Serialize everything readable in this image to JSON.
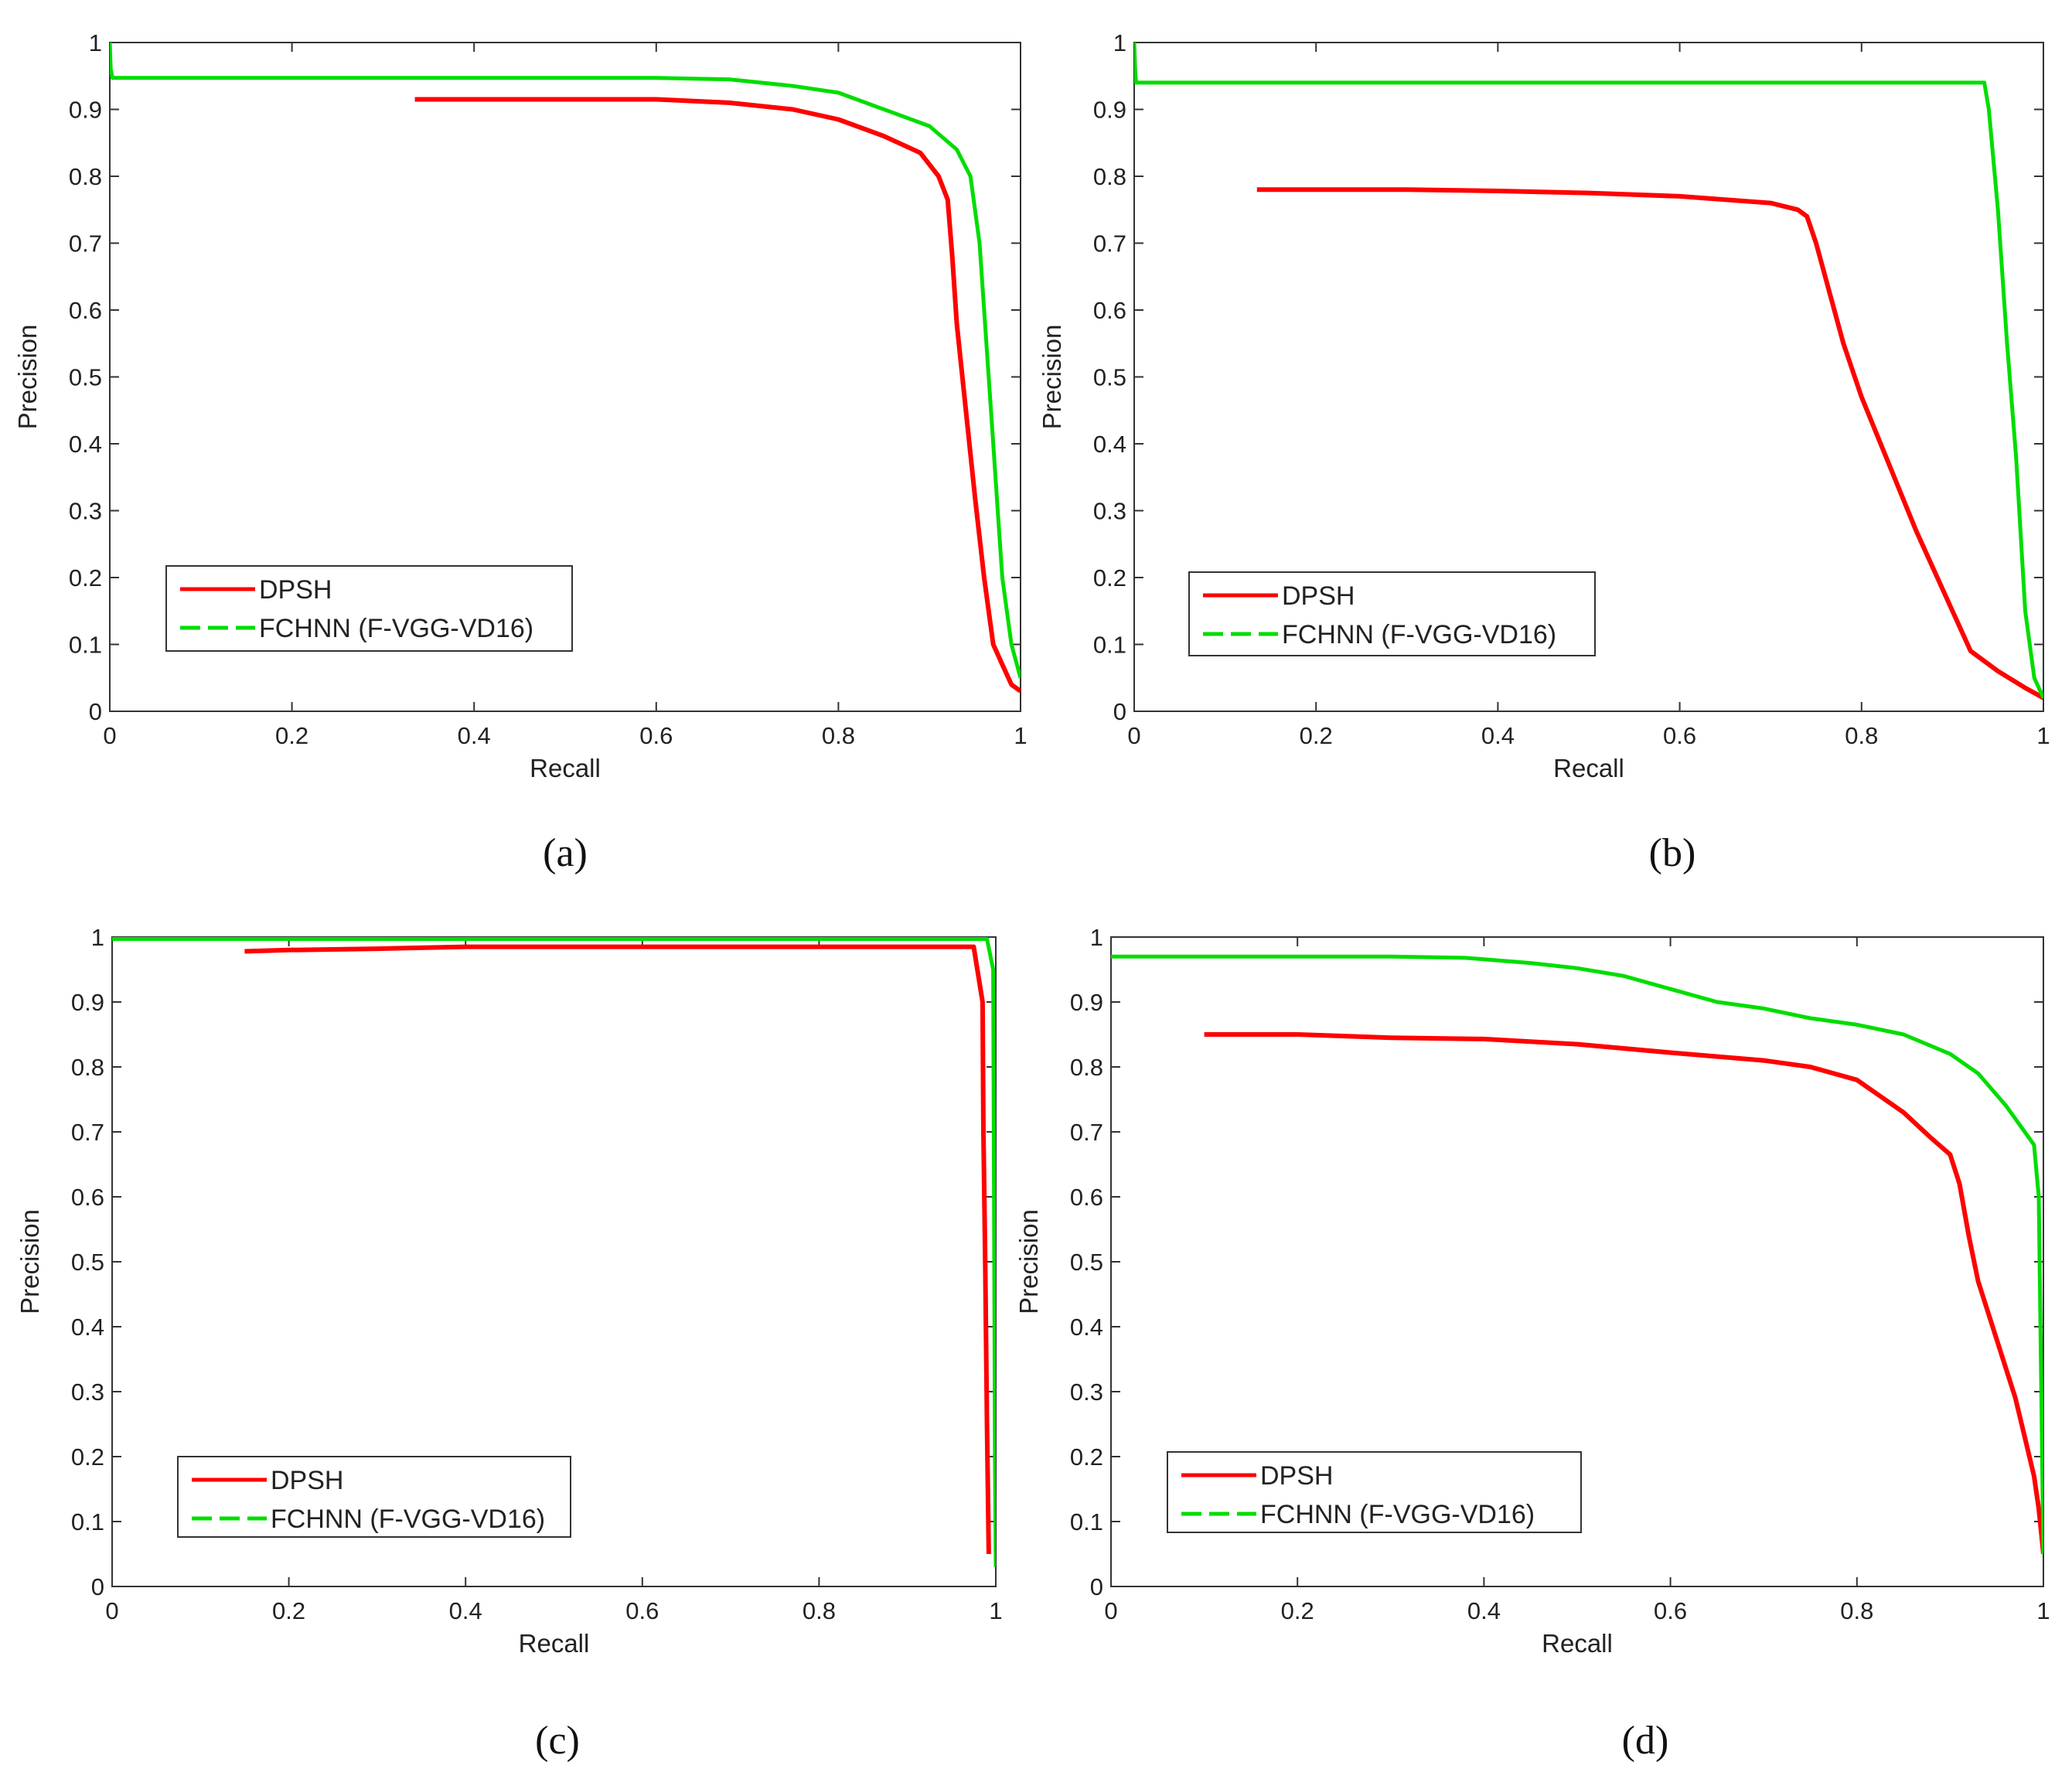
{
  "chart_data": [
    {
      "type": "line",
      "panel": "(a)",
      "xlabel": "Recall",
      "ylabel": "Precision",
      "xlim": [
        0,
        1
      ],
      "ylim": [
        0,
        1
      ],
      "xticks": [
        "0",
        "0.2",
        "0.4",
        "0.6",
        "0.8",
        "1"
      ],
      "yticks": [
        "0",
        "0.1",
        "0.2",
        "0.3",
        "0.4",
        "0.5",
        "0.6",
        "0.7",
        "0.8",
        "0.9",
        "1"
      ],
      "legend_position": "lower-left",
      "series": [
        {
          "name": "DPSH",
          "color": "#ff0000",
          "x": [
            0.335,
            0.4,
            0.5,
            0.6,
            0.68,
            0.75,
            0.8,
            0.85,
            0.89,
            0.91,
            0.92,
            0.925,
            0.93,
            0.94,
            0.95,
            0.96,
            0.97,
            0.98,
            0.99,
            1.0
          ],
          "y": [
            0.915,
            0.915,
            0.915,
            0.915,
            0.91,
            0.9,
            0.885,
            0.86,
            0.835,
            0.8,
            0.765,
            0.68,
            0.58,
            0.45,
            0.32,
            0.2,
            0.1,
            0.07,
            0.04,
            0.03
          ]
        },
        {
          "name": "FCHNN (F-VGG-VD16)",
          "color": "#00dd00",
          "x": [
            0.0,
            0.001,
            0.003,
            0.1,
            0.3,
            0.5,
            0.6,
            0.68,
            0.75,
            0.8,
            0.85,
            0.9,
            0.93,
            0.945,
            0.955,
            0.96,
            0.965,
            0.97,
            0.975,
            0.98,
            0.99,
            1.0
          ],
          "y": [
            1.0,
            0.96,
            0.947,
            0.947,
            0.947,
            0.947,
            0.947,
            0.945,
            0.935,
            0.925,
            0.9,
            0.875,
            0.84,
            0.8,
            0.7,
            0.6,
            0.5,
            0.4,
            0.3,
            0.2,
            0.1,
            0.05
          ]
        }
      ]
    },
    {
      "type": "line",
      "panel": "(b)",
      "xlabel": "Recall",
      "ylabel": "Precision",
      "xlim": [
        0,
        1
      ],
      "ylim": [
        0,
        1
      ],
      "xticks": [
        "0",
        "0.2",
        "0.4",
        "0.6",
        "0.8",
        "1"
      ],
      "yticks": [
        "0",
        "0.1",
        "0.2",
        "0.3",
        "0.4",
        "0.5",
        "0.6",
        "0.7",
        "0.8",
        "0.9",
        "1"
      ],
      "legend_position": "lower-left",
      "series": [
        {
          "name": "DPSH",
          "color": "#ff0000",
          "x": [
            0.135,
            0.2,
            0.3,
            0.4,
            0.5,
            0.6,
            0.7,
            0.73,
            0.74,
            0.75,
            0.78,
            0.8,
            0.83,
            0.86,
            0.9,
            0.92,
            0.95,
            0.98,
            1.0
          ],
          "y": [
            0.78,
            0.78,
            0.78,
            0.778,
            0.775,
            0.77,
            0.76,
            0.75,
            0.74,
            0.7,
            0.55,
            0.47,
            0.37,
            0.27,
            0.15,
            0.09,
            0.06,
            0.035,
            0.02
          ]
        },
        {
          "name": "FCHNN (F-VGG-VD16)",
          "color": "#00dd00",
          "x": [
            0.0,
            0.001,
            0.002,
            0.2,
            0.5,
            0.8,
            0.935,
            0.94,
            0.95,
            0.96,
            0.97,
            0.98,
            0.99,
            1.0
          ],
          "y": [
            1.0,
            0.96,
            0.94,
            0.94,
            0.94,
            0.94,
            0.94,
            0.9,
            0.75,
            0.55,
            0.38,
            0.15,
            0.05,
            0.02
          ]
        }
      ]
    },
    {
      "type": "line",
      "panel": "(c)",
      "xlabel": "Recall",
      "ylabel": "Precision",
      "xlim": [
        0,
        1
      ],
      "ylim": [
        0,
        1
      ],
      "xticks": [
        "0",
        "0.2",
        "0.4",
        "0.6",
        "0.8",
        "1"
      ],
      "yticks": [
        "0",
        "0.1",
        "0.2",
        "0.3",
        "0.4",
        "0.5",
        "0.6",
        "0.7",
        "0.8",
        "0.9",
        "1"
      ],
      "legend_position": "lower-left",
      "series": [
        {
          "name": "DPSH",
          "color": "#ff0000",
          "x": [
            0.15,
            0.2,
            0.3,
            0.4,
            0.6,
            0.8,
            0.975,
            0.985,
            0.986,
            0.988,
            0.99,
            0.992
          ],
          "y": [
            0.978,
            0.98,
            0.982,
            0.985,
            0.985,
            0.985,
            0.985,
            0.9,
            0.7,
            0.5,
            0.25,
            0.05
          ]
        },
        {
          "name": "FCHNN (F-VGG-VD16)",
          "color": "#00dd00",
          "x": [
            0.0,
            0.2,
            0.4,
            0.6,
            0.8,
            0.99,
            0.997,
            0.998,
            0.999,
            1.0
          ],
          "y": [
            0.997,
            0.997,
            0.997,
            0.997,
            0.997,
            0.997,
            0.95,
            0.6,
            0.2,
            0.03
          ]
        }
      ]
    },
    {
      "type": "line",
      "panel": "(d)",
      "xlabel": "Recall",
      "ylabel": "Precision",
      "xlim": [
        0,
        1
      ],
      "ylim": [
        0,
        1
      ],
      "xticks": [
        "0",
        "0.2",
        "0.4",
        "0.6",
        "0.8",
        "1"
      ],
      "yticks": [
        "0",
        "0.1",
        "0.2",
        "0.3",
        "0.4",
        "0.5",
        "0.6",
        "0.7",
        "0.8",
        "0.9",
        "1"
      ],
      "legend_position": "lower-left",
      "series": [
        {
          "name": "DPSH",
          "color": "#ff0000",
          "x": [
            0.1,
            0.2,
            0.3,
            0.4,
            0.5,
            0.6,
            0.7,
            0.75,
            0.8,
            0.85,
            0.88,
            0.9,
            0.91,
            0.92,
            0.93,
            0.95,
            0.97,
            0.98,
            0.99,
            0.995,
            1.0
          ],
          "y": [
            0.85,
            0.85,
            0.845,
            0.843,
            0.835,
            0.822,
            0.81,
            0.8,
            0.78,
            0.73,
            0.69,
            0.665,
            0.62,
            0.54,
            0.47,
            0.38,
            0.29,
            0.23,
            0.17,
            0.12,
            0.05
          ]
        },
        {
          "name": "FCHNN (F-VGG-VD16)",
          "color": "#00dd00",
          "x": [
            0.0,
            0.1,
            0.2,
            0.3,
            0.38,
            0.45,
            0.5,
            0.55,
            0.6,
            0.65,
            0.7,
            0.75,
            0.8,
            0.85,
            0.9,
            0.93,
            0.96,
            0.98,
            0.99,
            0.995,
            1.0
          ],
          "y": [
            0.97,
            0.97,
            0.97,
            0.97,
            0.968,
            0.96,
            0.952,
            0.94,
            0.92,
            0.9,
            0.89,
            0.875,
            0.865,
            0.85,
            0.82,
            0.79,
            0.74,
            0.7,
            0.68,
            0.6,
            0.05
          ]
        }
      ]
    }
  ]
}
